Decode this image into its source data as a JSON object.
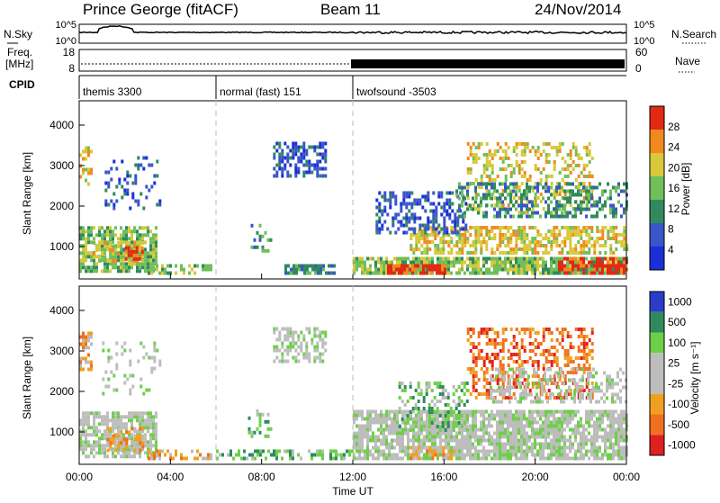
{
  "header": {
    "title": "Prince George (fitACF)",
    "beam": "Beam 11",
    "date": "24/Nov/2014"
  },
  "status": {
    "nsky_label": "N.Sky",
    "nsky_ticks": [
      "10^5",
      "10^0"
    ],
    "nsearch_label": "N.Search",
    "nsearch_ticks": [
      "10^5",
      "10^0"
    ],
    "freq_label_1": "Freq.",
    "freq_label_2": "[MHz]",
    "freq_ticks": [
      "18",
      "8"
    ],
    "nave_label": "Nave",
    "nave_ticks": [
      "60",
      "0"
    ],
    "cpid_label": "CPID",
    "cpid_segments": [
      {
        "label": "themis 3300",
        "start_hour": 0,
        "end_hour": 6
      },
      {
        "label": "normal (fast) 151",
        "start_hour": 6,
        "end_hour": 12
      },
      {
        "label": "twofsound -3503",
        "start_hour": 12,
        "end_hour": 24
      }
    ]
  },
  "chart_data": [
    {
      "type": "heatmap",
      "name": "power",
      "ylabel": "Slant Range [km]",
      "xlim": [
        0,
        24
      ],
      "ylim": [
        200,
        4600
      ],
      "y_ticks": [
        1000,
        2000,
        3000,
        4000
      ],
      "colorbar": {
        "label": "Power [dB]",
        "ticks": [
          "4",
          "8",
          "12",
          "16",
          "20",
          "24",
          "28"
        ],
        "colors": [
          "#1a2fd6",
          "#3a56c8",
          "#2f8a5e",
          "#6fbf5a",
          "#d8c83a",
          "#f08a1e",
          "#e02a14"
        ]
      },
      "regions": [
        {
          "t0": 0.0,
          "t1": 3.4,
          "r0": 350,
          "r1": 1500,
          "level": 3,
          "density": 0.75
        },
        {
          "t0": 0.6,
          "t1": 2.8,
          "r0": 600,
          "r1": 1100,
          "level": 4,
          "density": 0.6
        },
        {
          "t0": 2.0,
          "t1": 2.8,
          "r0": 650,
          "r1": 1000,
          "level": 6,
          "density": 0.5
        },
        {
          "t0": 0.0,
          "t1": 0.5,
          "r0": 2500,
          "r1": 3400,
          "level": 4,
          "density": 0.5
        },
        {
          "t0": 1.0,
          "t1": 3.6,
          "r0": 1900,
          "r1": 3200,
          "level": 1,
          "density": 0.2
        },
        {
          "t0": 3.0,
          "t1": 5.8,
          "r0": 300,
          "r1": 550,
          "level": 3,
          "density": 0.55
        },
        {
          "t0": 7.4,
          "t1": 8.4,
          "r0": 850,
          "r1": 1500,
          "level": 2,
          "density": 0.3
        },
        {
          "t0": 8.5,
          "t1": 10.8,
          "r0": 2700,
          "r1": 3500,
          "level": 1,
          "density": 0.55
        },
        {
          "t0": 9.0,
          "t1": 11.2,
          "r0": 300,
          "r1": 500,
          "level": 2,
          "density": 0.7
        },
        {
          "t0": 12.0,
          "t1": 24.0,
          "r0": 300,
          "r1": 700,
          "level": 3,
          "density": 0.8
        },
        {
          "t0": 13.5,
          "t1": 16.0,
          "r0": 300,
          "r1": 550,
          "level": 6,
          "density": 0.85
        },
        {
          "t0": 21.0,
          "t1": 24.0,
          "r0": 300,
          "r1": 700,
          "level": 6,
          "density": 0.75
        },
        {
          "t0": 14.5,
          "t1": 24.0,
          "r0": 800,
          "r1": 1500,
          "level": 4,
          "density": 0.6
        },
        {
          "t0": 17.0,
          "t1": 22.5,
          "r0": 1800,
          "r1": 3500,
          "level": 4,
          "density": 0.35
        },
        {
          "t0": 13.0,
          "t1": 17.0,
          "r0": 1300,
          "r1": 2300,
          "level": 1,
          "density": 0.45
        },
        {
          "t0": 16.5,
          "t1": 24.0,
          "r0": 1700,
          "r1": 2500,
          "level": 2,
          "density": 0.45
        }
      ]
    },
    {
      "type": "heatmap",
      "name": "velocity",
      "ylabel": "Slant Range [km]",
      "xlabel": "Time UT",
      "xlim": [
        0,
        24
      ],
      "ylim": [
        200,
        4600
      ],
      "y_ticks": [
        1000,
        2000,
        3000,
        4000
      ],
      "x_ticks": [
        "00:00",
        "04:00",
        "08:00",
        "12:00",
        "16:00",
        "20:00",
        "00:00"
      ],
      "colorbar": {
        "label": "Velocity [m s⁻¹]",
        "ticks": [
          "1000",
          "500",
          "100",
          "25",
          "-25",
          "-100",
          "-500",
          "-1000"
        ],
        "colors": [
          "#2a3cc8",
          "#2f8a5e",
          "#6ecf4a",
          "#bdbdbd",
          "#bdbdbd",
          "#f0a020",
          "#f07020",
          "#e02020"
        ]
      },
      "regions": [
        {
          "t0": 0.0,
          "t1": 3.4,
          "r0": 350,
          "r1": 1500,
          "level": 3,
          "density": 0.75
        },
        {
          "t0": 1.2,
          "t1": 2.8,
          "r0": 500,
          "r1": 1100,
          "level": 5,
          "density": 0.6
        },
        {
          "t0": 0.0,
          "t1": 0.5,
          "r0": 2500,
          "r1": 3400,
          "level": 5,
          "density": 0.5
        },
        {
          "t0": 1.0,
          "t1": 3.6,
          "r0": 1900,
          "r1": 3200,
          "level": 3,
          "density": 0.2
        },
        {
          "t0": 3.0,
          "t1": 5.8,
          "r0": 300,
          "r1": 550,
          "level": 5,
          "density": 0.55
        },
        {
          "t0": 7.4,
          "t1": 8.4,
          "r0": 850,
          "r1": 1500,
          "level": 2,
          "density": 0.3
        },
        {
          "t0": 8.5,
          "t1": 10.8,
          "r0": 2700,
          "r1": 3500,
          "level": 3,
          "density": 0.55
        },
        {
          "t0": 6.0,
          "t1": 12.0,
          "r0": 300,
          "r1": 500,
          "level": 2,
          "density": 0.5
        },
        {
          "t0": 12.0,
          "t1": 24.0,
          "r0": 300,
          "r1": 1500,
          "level": 3,
          "density": 0.8
        },
        {
          "t0": 14.5,
          "t1": 16.5,
          "r0": 300,
          "r1": 600,
          "level": 5,
          "density": 0.5
        },
        {
          "t0": 17.0,
          "t1": 22.5,
          "r0": 1800,
          "r1": 3500,
          "level": 6,
          "density": 0.4
        },
        {
          "t0": 14.0,
          "t1": 17.0,
          "r0": 1000,
          "r1": 2200,
          "level": 2,
          "density": 0.4
        },
        {
          "t0": 18.0,
          "t1": 24.0,
          "r0": 1700,
          "r1": 2500,
          "level": 3,
          "density": 0.45
        }
      ]
    }
  ]
}
